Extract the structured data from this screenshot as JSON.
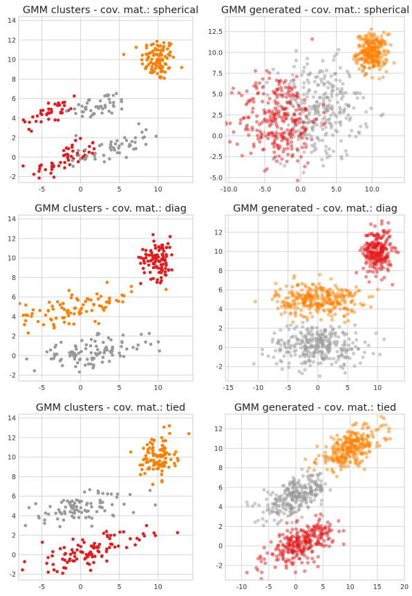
{
  "colors": {
    "red": "#e41a1c",
    "orange": "#ff7f00",
    "gray": "#999999"
  },
  "chart_data": [
    {
      "type": "scatter",
      "title": "GMM clusters - cov. mat.: spherical",
      "xlim": [
        -8,
        14.5
      ],
      "ylim": [
        -2.6,
        14.4
      ],
      "xticks": [
        -5,
        0,
        5,
        10
      ],
      "yticks": [
        -2,
        0,
        2,
        4,
        6,
        8,
        10,
        12,
        14
      ],
      "grid": true,
      "point_alpha": 1,
      "groups": [
        {
          "color": "orange",
          "n": 100,
          "mean": [
            10,
            10
          ],
          "sd": [
            1.1,
            1.1
          ],
          "corr": 0
        },
        {
          "color": "red",
          "n": 40,
          "mean": [
            -4,
            4.5
          ],
          "sd": [
            2.2,
            0.9
          ],
          "corr": 0.6
        },
        {
          "color": "gray",
          "n": 45,
          "mean": [
            2.5,
            5.3
          ],
          "sd": [
            2.0,
            0.7
          ],
          "corr": 0.5
        },
        {
          "color": "red",
          "n": 55,
          "mean": [
            -2,
            -0.3
          ],
          "sd": [
            2.2,
            0.9
          ],
          "corr": 0.6
        },
        {
          "color": "gray",
          "n": 50,
          "mean": [
            4.5,
            1.0
          ],
          "sd": [
            2.2,
            0.9
          ],
          "corr": 0.6
        }
      ]
    },
    {
      "type": "scatter",
      "title": "GMM generated - cov. mat.: spherical",
      "xlim": [
        -10.5,
        14.5
      ],
      "ylim": [
        -5.6,
        14.3
      ],
      "xticks": [
        -10,
        -5,
        0,
        5,
        10
      ],
      "yticks": [
        -5.0,
        -2.5,
        0.0,
        2.5,
        5.0,
        7.5,
        10.0,
        12.5
      ],
      "tick_format": "1dp",
      "grid": true,
      "point_alpha": 0.5,
      "groups": [
        {
          "color": "orange",
          "n": 250,
          "mean": [
            10,
            10
          ],
          "sd": [
            1.1,
            1.1
          ],
          "corr": 0
        },
        {
          "color": "gray",
          "n": 300,
          "mean": [
            2.5,
            3
          ],
          "sd": [
            3.0,
            3.0
          ],
          "corr": 0
        },
        {
          "color": "red",
          "n": 280,
          "mean": [
            -3,
            2
          ],
          "sd": [
            2.8,
            2.8
          ],
          "corr": 0
        }
      ]
    },
    {
      "type": "scatter",
      "title": "GMM clusters - cov. mat.: diag",
      "xlim": [
        -8,
        14.5
      ],
      "ylim": [
        -2.6,
        14.4
      ],
      "xticks": [
        -5,
        0,
        5,
        10
      ],
      "yticks": [
        -2,
        0,
        2,
        4,
        6,
        8,
        10,
        12,
        14
      ],
      "grid": true,
      "point_alpha": 1,
      "groups": [
        {
          "color": "red",
          "n": 100,
          "mean": [
            10,
            10
          ],
          "sd": [
            1.1,
            1.1
          ],
          "corr": 0
        },
        {
          "color": "orange",
          "n": 90,
          "mean": [
            -0.5,
            5
          ],
          "sd": [
            3.6,
            0.9
          ],
          "corr": 0.5
        },
        {
          "color": "gray",
          "n": 100,
          "mean": [
            1.5,
            0.3
          ],
          "sd": [
            3.8,
            0.9
          ],
          "corr": 0.55
        }
      ]
    },
    {
      "type": "scatter",
      "title": "GMM generated - cov. mat.: diag",
      "xlim": [
        -15.5,
        14.5
      ],
      "ylim": [
        -3.5,
        13.8
      ],
      "xticks": [
        -15,
        -10,
        -5,
        0,
        5,
        10
      ],
      "yticks": [
        -2,
        0,
        2,
        4,
        6,
        8,
        10,
        12
      ],
      "grid": true,
      "point_alpha": 0.5,
      "groups": [
        {
          "color": "red",
          "n": 250,
          "mean": [
            10,
            10
          ],
          "sd": [
            1.2,
            1.2
          ],
          "corr": 0
        },
        {
          "color": "orange",
          "n": 300,
          "mean": [
            0,
            5
          ],
          "sd": [
            3.5,
            0.9
          ],
          "corr": 0
        },
        {
          "color": "gray",
          "n": 300,
          "mean": [
            0,
            0.2
          ],
          "sd": [
            4.0,
            1.1
          ],
          "corr": 0
        }
      ]
    },
    {
      "type": "scatter",
      "title": "GMM clusters - cov. mat.: tied",
      "xlim": [
        -8,
        14.5
      ],
      "ylim": [
        -2.6,
        14.4
      ],
      "xticks": [
        -5,
        0,
        5,
        10
      ],
      "yticks": [
        -2,
        0,
        2,
        4,
        6,
        8,
        10,
        12,
        14
      ],
      "grid": true,
      "point_alpha": 1,
      "groups": [
        {
          "color": "orange",
          "n": 100,
          "mean": [
            10,
            10
          ],
          "sd": [
            1.1,
            1.1
          ],
          "corr": 0
        },
        {
          "color": "gray",
          "n": 90,
          "mean": [
            0,
            4.8
          ],
          "sd": [
            3.8,
            1.0
          ],
          "corr": 0.55
        },
        {
          "color": "red",
          "n": 100,
          "mean": [
            1,
            0.3
          ],
          "sd": [
            3.8,
            1.0
          ],
          "corr": 0.6
        }
      ]
    },
    {
      "type": "scatter",
      "title": "GMM generated - cov. mat.: tied",
      "xlim": [
        -13,
        20
      ],
      "ylim": [
        -3.5,
        13.5
      ],
      "xticks": [
        -10,
        -5,
        0,
        5,
        10,
        15,
        20
      ],
      "yticks": [
        -2,
        0,
        2,
        4,
        6,
        8,
        10,
        12
      ],
      "grid": true,
      "point_alpha": 0.5,
      "groups": [
        {
          "color": "orange",
          "n": 280,
          "mean": [
            10,
            10
          ],
          "sd": [
            3.0,
            1.1
          ],
          "corr": 0.6
        },
        {
          "color": "gray",
          "n": 280,
          "mean": [
            0,
            5
          ],
          "sd": [
            3.0,
            1.1
          ],
          "corr": 0.6
        },
        {
          "color": "red",
          "n": 280,
          "mean": [
            1,
            0.3
          ],
          "sd": [
            3.0,
            1.1
          ],
          "corr": 0.6
        }
      ]
    }
  ]
}
